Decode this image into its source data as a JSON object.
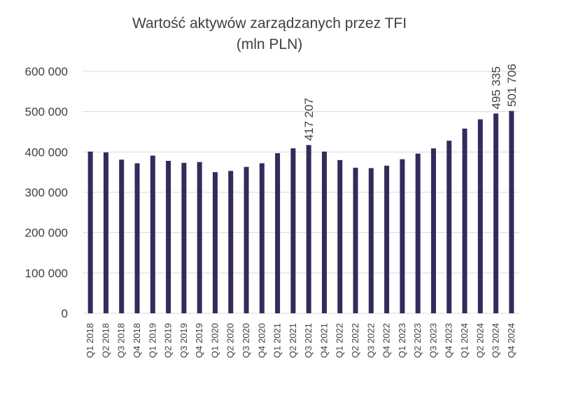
{
  "chart_data": {
    "type": "bar",
    "title": "Wartość aktywów zarządzanych przez TFI",
    "subtitle": "(mln PLN)",
    "categories": [
      "Q1 2018",
      "Q2 2018",
      "Q3 2018",
      "Q4 2018",
      "Q1 2019",
      "Q2 2019",
      "Q3 2019",
      "Q4 2019",
      "Q1 2020",
      "Q2 2020",
      "Q3 2020",
      "Q4 2020",
      "Q1 2021",
      "Q2 2021",
      "Q3 2021",
      "Q4 2021",
      "Q1 2022",
      "Q2 2022",
      "Q3 2022",
      "Q4 2022",
      "Q1 2023",
      "Q2 2023",
      "Q3 2023",
      "Q4 2023",
      "Q1 2024",
      "Q2 2024",
      "Q3 2024",
      "Q4 2024"
    ],
    "values": [
      401000,
      399000,
      381000,
      372000,
      391000,
      378000,
      373000,
      375000,
      350000,
      353000,
      363000,
      372000,
      397000,
      409000,
      417207,
      401000,
      380000,
      361000,
      360000,
      366000,
      382000,
      396000,
      409000,
      428000,
      458000,
      481000,
      495335,
      501706
    ],
    "data_labels": [
      {
        "index": 14,
        "text": "417 207"
      },
      {
        "index": 26,
        "text": "495 335"
      },
      {
        "index": 27,
        "text": "501 706"
      }
    ],
    "ylim": [
      0,
      600000
    ],
    "yticks": [
      0,
      100000,
      200000,
      300000,
      400000,
      500000,
      600000
    ],
    "ytick_labels": [
      "0",
      "100 000",
      "200 000",
      "300 000",
      "400 000",
      "500 000",
      "600 000"
    ],
    "grid": true,
    "bar_color": "#342a5c",
    "xlabel": "",
    "ylabel": ""
  }
}
